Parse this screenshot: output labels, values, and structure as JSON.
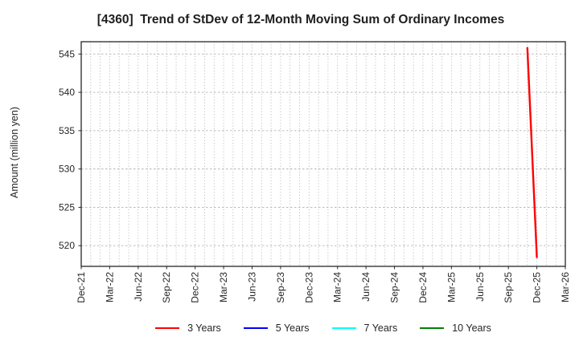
{
  "chart": {
    "title": "[4360]  Trend of StDev of 12-Month Moving Sum of Ordinary Incomes",
    "ylabel": "Amount (million yen)"
  },
  "colors": {
    "background": "#ffffff",
    "plot_border": "#262626",
    "gridline": "#b2b2b2",
    "tick_text": "#262626"
  },
  "chart_data": {
    "type": "line",
    "title": "[4360]  Trend of StDev of 12-Month Moving Sum of Ordinary Incomes",
    "xlabel": "",
    "ylabel": "Amount (million yen)",
    "x_tick_labels": [
      "Dec-21",
      "Mar-22",
      "Jun-22",
      "Sep-22",
      "Dec-22",
      "Mar-23",
      "Jun-23",
      "Sep-23",
      "Dec-23",
      "Mar-24",
      "Jun-24",
      "Sep-24",
      "Dec-24",
      "Mar-25",
      "Jun-25",
      "Sep-25",
      "Dec-25",
      "Mar-26"
    ],
    "x_tick_interval_months": 3,
    "x_range_months": [
      0,
      51
    ],
    "y_ticks": [
      520,
      525,
      530,
      535,
      540,
      545
    ],
    "ylim": [
      517.3,
      546.6
    ],
    "grid": "on",
    "legend_position": "bottom",
    "series": [
      {
        "name": "3 Years",
        "color": "#ff0000",
        "points": [
          {
            "x_month": 47,
            "x_label": "Nov-25",
            "y": 545.8
          },
          {
            "x_month": 48,
            "x_label": "Dec-25",
            "y": 518.5
          }
        ]
      },
      {
        "name": "5 Years",
        "color": "#0000ff",
        "points": []
      },
      {
        "name": "7 Years",
        "color": "#00ffff",
        "points": []
      },
      {
        "name": "10 Years",
        "color": "#008000",
        "points": []
      }
    ]
  }
}
